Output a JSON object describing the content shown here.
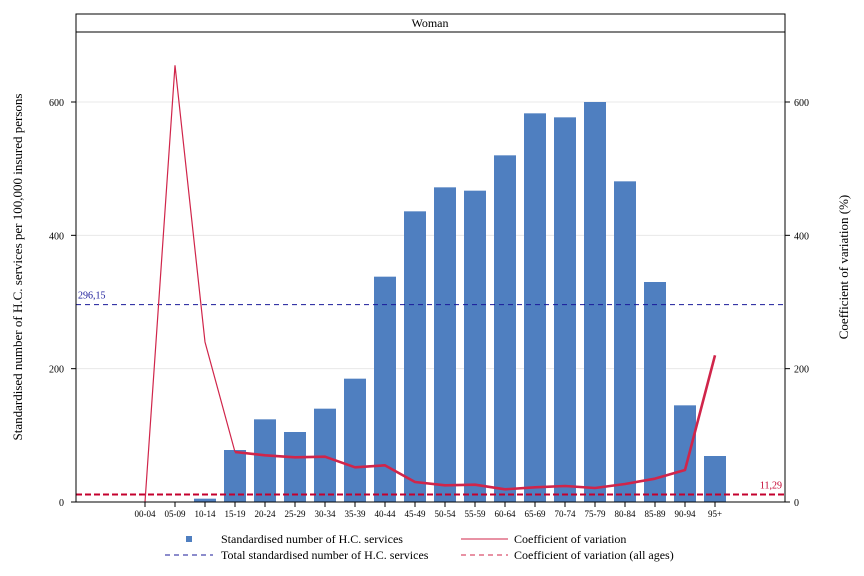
{
  "chart_data": {
    "type": "bar",
    "panel_label": "Woman",
    "categories": [
      "00-04",
      "05-09",
      "10-14",
      "15-19",
      "20-24",
      "25-29",
      "30-34",
      "35-39",
      "40-44",
      "45-49",
      "50-54",
      "55-59",
      "60-64",
      "65-69",
      "70-74",
      "75-79",
      "80-84",
      "85-89",
      "90-94",
      "95+"
    ],
    "series": [
      {
        "name": "Standardised number of H.C. services",
        "axis": "left",
        "kind": "bar",
        "color": "#4f7fc0",
        "values": [
          0,
          0,
          5,
          78,
          124,
          105,
          140,
          185,
          338,
          436,
          472,
          467,
          520,
          583,
          577,
          600,
          481,
          330,
          145,
          69
        ]
      },
      {
        "name": "Coefficient of variation",
        "axis": "right",
        "kind": "line",
        "color": "#d0254a",
        "values": [
          0,
          655,
          240,
          75,
          70,
          67,
          68,
          52,
          55,
          30,
          25,
          26,
          19,
          22,
          24,
          21,
          27,
          35,
          48,
          220
        ]
      }
    ],
    "reference_lines": [
      {
        "name": "Total standardised number of H.C. services",
        "axis": "left",
        "value": 296.15,
        "label": "296,15",
        "color": "#1a1a9a"
      },
      {
        "name": "Coefficient of variation (all ages)",
        "axis": "right",
        "value": 11.29,
        "label": "11,29",
        "color": "#c4002e"
      }
    ],
    "left_axis": {
      "label": "Standardised number of H.C. services per 100,000 insured persons",
      "ticks": [
        0,
        200,
        400,
        600
      ],
      "range": [
        0,
        705
      ]
    },
    "right_axis": {
      "label": "Coefficient of variation (%)",
      "ticks": [
        0,
        200,
        400,
        600
      ],
      "range": [
        0,
        705
      ]
    },
    "legend_placement": "bottom"
  }
}
